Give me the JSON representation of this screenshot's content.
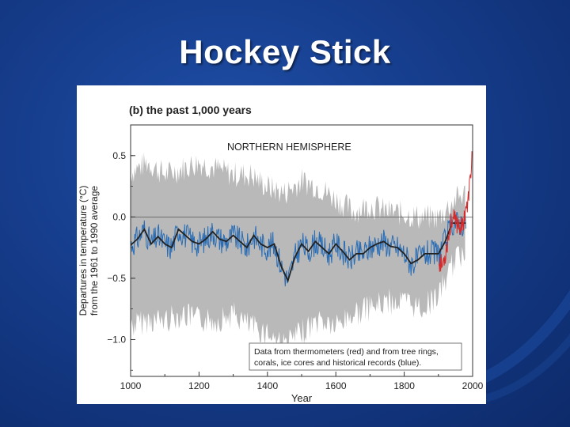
{
  "slide": {
    "title": "Hockey Stick"
  },
  "chart_data": {
    "type": "line",
    "title": "(b) the past 1,000 years",
    "annotation": "NORTHERN HEMISPHERE",
    "xlabel": "Year",
    "ylabel": [
      "Departures in temperature (°C)",
      "from the 1961 to 1990 average"
    ],
    "xlim": [
      1000,
      2000
    ],
    "ylim": [
      -1.3,
      0.75
    ],
    "xticks": [
      "1000",
      "1200",
      "1400",
      "1600",
      "1800",
      "2000"
    ],
    "yticks": [
      "0.5",
      "0.0",
      "−0.5",
      "−1.0"
    ],
    "reference_line": 0.0,
    "legend_text": [
      "Data from thermometers (red) and from tree rings,",
      "corals, ice cores and historical records (blue)."
    ],
    "colors": {
      "proxy": "#2a6db5",
      "thermometer": "#d62a2a",
      "smooth": "#222222",
      "uncertainty": "#b9b9b9"
    },
    "series": [
      {
        "name": "proxy",
        "x": [
          1000,
          1020,
          1040,
          1060,
          1080,
          1100,
          1120,
          1140,
          1160,
          1180,
          1200,
          1220,
          1240,
          1260,
          1280,
          1300,
          1320,
          1340,
          1360,
          1380,
          1400,
          1420,
          1440,
          1460,
          1480,
          1500,
          1520,
          1540,
          1560,
          1580,
          1600,
          1620,
          1640,
          1660,
          1680,
          1700,
          1720,
          1740,
          1760,
          1780,
          1800,
          1820,
          1840,
          1860,
          1880,
          1900,
          1920,
          1940,
          1960,
          1980
        ],
        "values": [
          -0.23,
          -0.18,
          -0.1,
          -0.22,
          -0.16,
          -0.22,
          -0.25,
          -0.1,
          -0.15,
          -0.2,
          -0.22,
          -0.18,
          -0.12,
          -0.18,
          -0.2,
          -0.15,
          -0.2,
          -0.25,
          -0.15,
          -0.22,
          -0.25,
          -0.22,
          -0.4,
          -0.52,
          -0.33,
          -0.22,
          -0.28,
          -0.2,
          -0.25,
          -0.3,
          -0.22,
          -0.28,
          -0.35,
          -0.3,
          -0.3,
          -0.25,
          -0.22,
          -0.2,
          -0.24,
          -0.25,
          -0.3,
          -0.38,
          -0.35,
          -0.3,
          -0.3,
          -0.3,
          -0.2,
          -0.05,
          -0.05,
          -0.05
        ]
      },
      {
        "name": "thermometer",
        "x": [
          1902,
          1910,
          1920,
          1930,
          1940,
          1950,
          1960,
          1970,
          1980,
          1985,
          1990,
          1995,
          1998
        ],
        "values": [
          -0.35,
          -0.4,
          -0.3,
          -0.15,
          0.0,
          -0.05,
          -0.05,
          -0.1,
          0.1,
          0.05,
          0.25,
          0.3,
          0.6
        ]
      }
    ],
    "uncertainty_band": {
      "x": [
        1000,
        1050,
        1100,
        1150,
        1200,
        1250,
        1300,
        1350,
        1400,
        1450,
        1500,
        1550,
        1600,
        1650,
        1700,
        1750,
        1800,
        1850,
        1900,
        1950,
        1980
      ],
      "upper": [
        0.32,
        0.4,
        0.3,
        0.35,
        0.4,
        0.35,
        0.3,
        0.3,
        0.2,
        0.15,
        0.25,
        0.2,
        0.1,
        0.0,
        0.05,
        0.0,
        -0.02,
        -0.05,
        -0.05,
        0.1,
        0.15
      ],
      "lower": [
        -0.85,
        -0.8,
        -0.8,
        -0.75,
        -0.8,
        -0.8,
        -0.75,
        -0.85,
        -0.9,
        -1.0,
        -0.9,
        -0.8,
        -0.85,
        -0.75,
        -0.7,
        -0.65,
        -0.65,
        -0.7,
        -0.6,
        -0.3,
        -0.25
      ]
    }
  }
}
